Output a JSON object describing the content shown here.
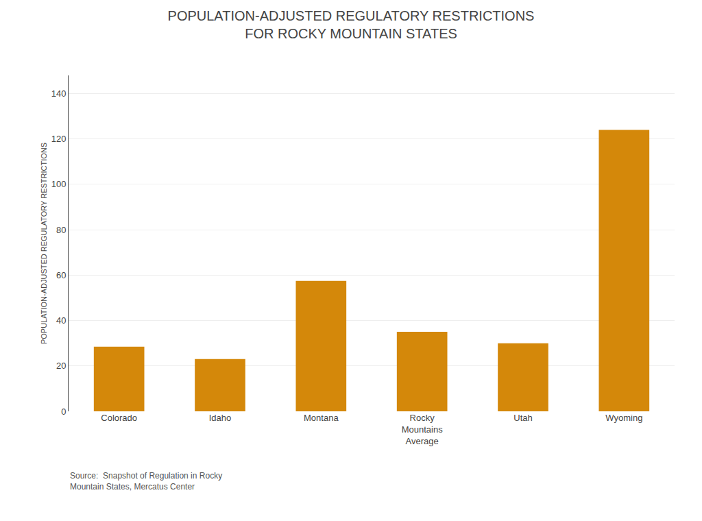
{
  "chart_data": {
    "type": "bar",
    "title": "POPULATION-ADJUSTED REGULATORY RESTRICTIONS\nFOR ROCKY MOUNTAIN STATES",
    "ylabel": "POPULATION-ADJUSTED REGULATORY RESTRICTIONS",
    "categories": [
      "Colorado",
      "Idaho",
      "Montana",
      "Rocky\nMountains\nAverage",
      "Utah",
      "Wyoming"
    ],
    "values": [
      28.5,
      23.0,
      57.5,
      35.0,
      30.0,
      124.0
    ],
    "color": "#D4880A",
    "ylim": [
      0,
      148
    ],
    "yticks": [
      0,
      20,
      40,
      60,
      80,
      100,
      120,
      140
    ],
    "grid": true,
    "annotations": [
      "Source:  Snapshot of Regulation in Rocky\nMountain States, Mercatus Center"
    ]
  }
}
